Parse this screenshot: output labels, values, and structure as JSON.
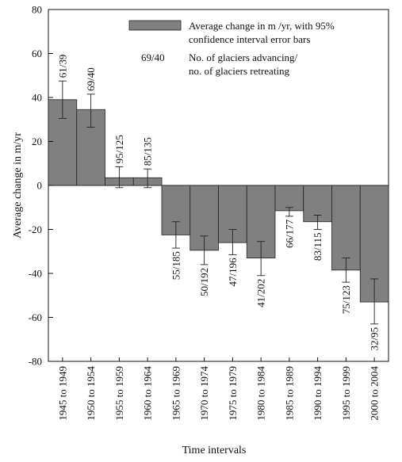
{
  "chart_data": {
    "type": "bar",
    "xlabel": "Time intervals",
    "ylabel": "Average change in m/yr",
    "ylim": [
      -80,
      80
    ],
    "yticks": [
      80,
      60,
      40,
      20,
      0,
      -20,
      -40,
      -60,
      -80
    ],
    "categories": [
      "1945 to 1949",
      "1950 to 1954",
      "1955 to 1959",
      "1960 to 1964",
      "1965 to 1969",
      "1970 to 1974",
      "1975 to 1979",
      "1980 to 1984",
      "1985 to 1989",
      "1990 to 1994",
      "1995 to 1999",
      "2000 to 2004"
    ],
    "values": [
      39,
      34.5,
      3.5,
      3.5,
      -22.5,
      -29.5,
      -26,
      -33,
      -11.5,
      -16.5,
      -38.5,
      -53
    ],
    "error_low": [
      30.5,
      26.5,
      -1,
      -1,
      -28.5,
      -36,
      -31.5,
      -41,
      -14,
      -20,
      -44,
      -63
    ],
    "error_high": [
      47.5,
      41.5,
      8.5,
      7.5,
      -16.5,
      -23,
      -20,
      -25.5,
      -10,
      -13.5,
      -33,
      -42.5
    ],
    "bar_labels": [
      "61/39",
      "69/40",
      "95/125",
      "85/135",
      "55/185",
      "50/192",
      "47/196",
      "41/202",
      "66/177",
      "83/115",
      "75/123",
      "32/95"
    ],
    "legend": {
      "position": "top-right",
      "bar_entry": [
        "Average change in m /yr, with 95%",
        "confidence interval error bars"
      ],
      "ratio_example": "69/40",
      "ratio_entry": [
        "No. of glaciers advancing/",
        "no. of glaciers retreating"
      ]
    },
    "colors": {
      "bar": "#808080",
      "stroke": "#222222"
    },
    "grid": false
  }
}
